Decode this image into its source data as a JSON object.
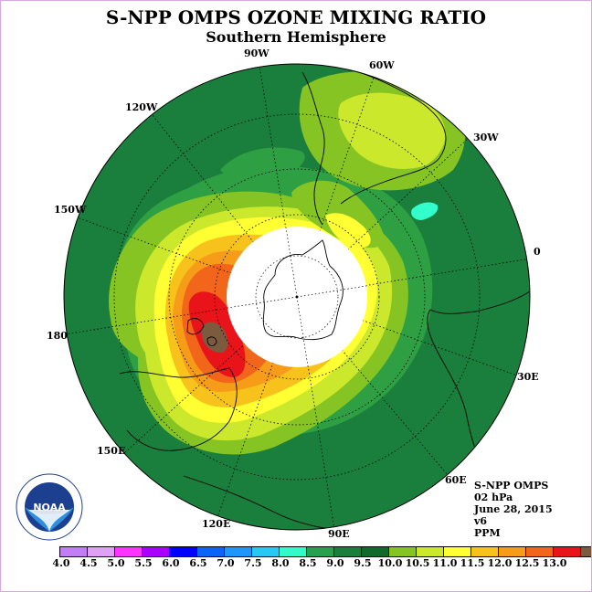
{
  "header": {
    "title": "S-NPP OMPS OZONE MIXING RATIO",
    "subtitle": "Southern Hemisphere"
  },
  "map": {
    "projection": "polar stereographic, South Pole centered",
    "longitude_labels": {
      "lbl_90w": "90W",
      "lbl_60w": "60W",
      "lbl_30w": "30W",
      "lbl_0": "0",
      "lbl_30e": "30E",
      "lbl_60e": "60E",
      "lbl_90e": "90E",
      "lbl_120e": "120E",
      "lbl_150e": "150E",
      "lbl_180": "180",
      "lbl_150w": "150W",
      "lbl_120w": "120W"
    },
    "features": [
      "Antarctica (polar data gap)",
      "South America",
      "Africa",
      "Australia",
      "New Zealand"
    ],
    "field_description": "ozone maximum (12.5-13 PPM) south of Australia/New Zealand near 180",
    "colors": {
      "dark_green": "#1a7f3c",
      "med_green": "#2ea043",
      "light_green": "#85c423",
      "yellow_green": "#cbe82c",
      "yellow": "#ffff33",
      "gold": "#f7c21c",
      "orange": "#f79c18",
      "dark_orange": "#f1661a",
      "red": "#e8141a",
      "brown": "#7b5a3e",
      "cyan": "#33ffcc"
    }
  },
  "info": {
    "instrument": "S-NPP OMPS",
    "level": "02 hPa",
    "date": "June 28, 2015",
    "version": "v6",
    "units": "PPM"
  },
  "logo": {
    "name": "NOAA",
    "text": "NOAA"
  },
  "colorbar": {
    "colors": [
      "#c27ff5",
      "#e0a0f5",
      "#ff33ff",
      "#aa00ff",
      "#0000ff",
      "#0a64f5",
      "#1e96fa",
      "#28c8f5",
      "#32fac8",
      "#28a050",
      "#1a7f3c",
      "#0f6a2c",
      "#85c423",
      "#cbe82c",
      "#ffff33",
      "#f7c21c",
      "#f79c18",
      "#f1661a",
      "#e8141a",
      "#7b5a3e"
    ],
    "ticks": [
      "4.0",
      "4.5",
      "5.0",
      "5.5",
      "6.0",
      "6.5",
      "7.0",
      "7.5",
      "8.0",
      "8.5",
      "9.0",
      "9.5",
      "10.0",
      "10.5",
      "11.0",
      "11.5",
      "12.0",
      "12.5",
      "13.0"
    ]
  }
}
